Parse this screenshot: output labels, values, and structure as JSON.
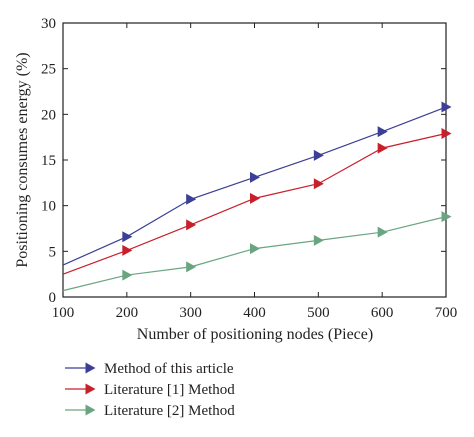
{
  "chart_data": {
    "type": "line",
    "xlabel": "Number of positioning nodes (Piece)",
    "ylabel": "Positioning consumes energy (%)",
    "xlim": [
      100,
      700
    ],
    "ylim": [
      0,
      30
    ],
    "xticks": [
      100,
      200,
      300,
      400,
      500,
      600,
      700
    ],
    "yticks": [
      0,
      5,
      10,
      15,
      20,
      25,
      30
    ],
    "grid": false,
    "legend_position": "below",
    "series": [
      {
        "name": "Method of this article",
        "color": "#3b3f96",
        "marker": "triangle-right",
        "x": [
          100,
          200,
          300,
          400,
          500,
          600,
          700
        ],
        "y": [
          3.5,
          6.6,
          10.7,
          13.1,
          15.5,
          18.1,
          20.8
        ]
      },
      {
        "name": "Literature [1] Method",
        "color": "#c8202a",
        "marker": "triangle-right",
        "x": [
          100,
          200,
          300,
          400,
          500,
          600,
          700
        ],
        "y": [
          2.5,
          5.1,
          7.9,
          10.8,
          12.4,
          16.3,
          17.9
        ]
      },
      {
        "name": "Literature [2] Method",
        "color": "#6aa581",
        "marker": "triangle-right",
        "x": [
          100,
          200,
          300,
          400,
          500,
          600,
          700
        ],
        "y": [
          0.7,
          2.4,
          3.3,
          5.3,
          6.2,
          7.1,
          8.8
        ]
      }
    ]
  }
}
